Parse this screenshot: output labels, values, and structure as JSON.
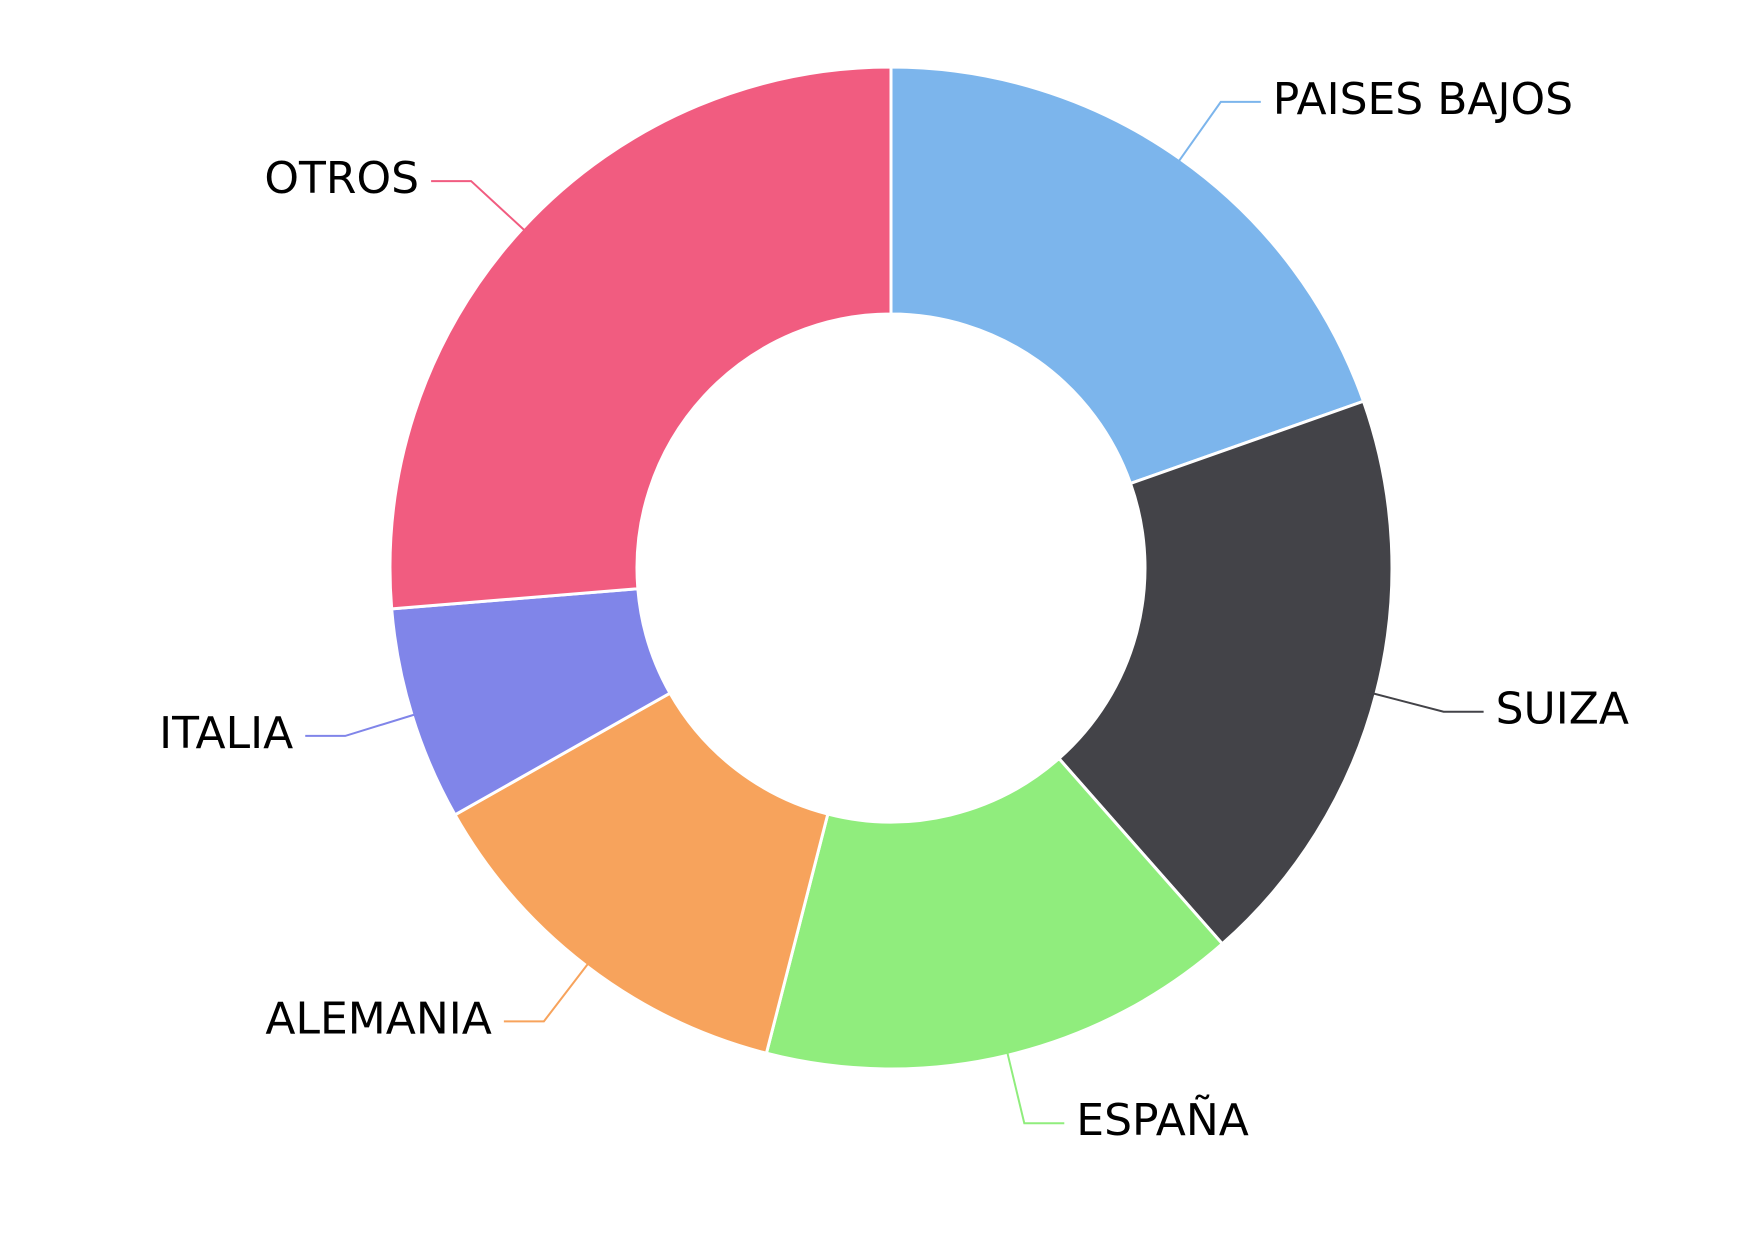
{
  "chart_data": {
    "type": "donut",
    "categories": [
      "PAISES BAJOS",
      "SUIZA",
      "ESPAÑA",
      "ALEMANIA",
      "ITALIA",
      "OTROS"
    ],
    "values": [
      19.6,
      18.9,
      15.5,
      12.8,
      6.9,
      26.3
    ],
    "colors": [
      "#7cb5ec",
      "#434348",
      "#90ed7d",
      "#f7a35c",
      "#8085e9",
      "#f15c80"
    ]
  }
}
